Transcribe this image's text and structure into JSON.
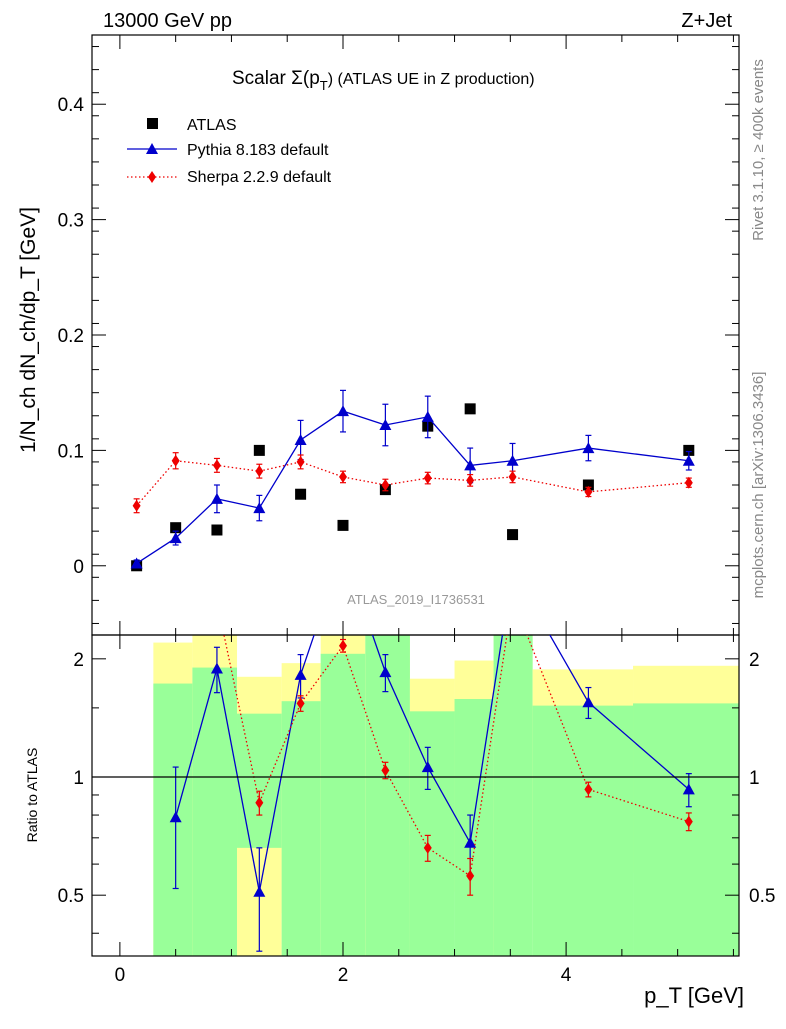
{
  "header": {
    "energy": "13000 GeV pp",
    "process": "Z+Jet"
  },
  "side_labels": {
    "rivet": "Rivet 3.1.10, ≥ 400k events",
    "mcplots": "mcplots.cern.ch [arXiv:1306.3436]"
  },
  "chart_data": {
    "type": "scatter",
    "title_prefix": "Scalar Σ(p",
    "title_sub": "T",
    "title_suffix": ") (ATLAS UE in Z production)",
    "analysis_id": "ATLAS_2019_I1736531",
    "ylabel": "1/N_ch dN_ch/dp_T [GeV]",
    "xlabel": "p_T [GeV]",
    "xlim": [
      -0.25,
      5.55
    ],
    "ylim": [
      -0.06,
      0.46
    ],
    "x_ticks": [
      0,
      2,
      4
    ],
    "y_ticks": [
      0,
      0.1,
      0.2,
      0.3,
      0.4
    ],
    "x_tick_labels": [
      "0",
      "2",
      "4"
    ],
    "y_tick_labels": [
      "0",
      "0.1",
      "0.2",
      "0.3",
      "0.4"
    ],
    "x": [
      0.15,
      0.5,
      0.87,
      1.25,
      1.62,
      2.0,
      2.38,
      2.76,
      3.14,
      3.52,
      4.2,
      5.1
    ],
    "bin_edges": [
      0.3,
      0.65,
      1.05,
      1.45,
      1.8,
      2.2,
      2.6,
      3.0,
      3.35,
      3.7,
      4.6,
      5.55
    ],
    "series": [
      {
        "name": "ATLAS",
        "color": "#000000",
        "marker": "square",
        "values": [
          0.0,
          0.033,
          0.031,
          0.1,
          0.062,
          0.035,
          0.066,
          0.121,
          0.136,
          0.027,
          0.07,
          0.1
        ]
      },
      {
        "name": "Pythia 8.183 default",
        "color": "#0000cc",
        "marker": "triangle",
        "line": "solid",
        "values": [
          0.002,
          0.024,
          0.058,
          0.05,
          0.109,
          0.134,
          0.122,
          0.129,
          0.087,
          0.091,
          0.102,
          0.091
        ],
        "errors": [
          0.003,
          0.006,
          0.012,
          0.011,
          0.017,
          0.018,
          0.018,
          0.018,
          0.015,
          0.015,
          0.011,
          0.008
        ]
      },
      {
        "name": "Sherpa 2.2.9 default",
        "color": "#ee0000",
        "marker": "diamond",
        "line": "dotted",
        "values": [
          0.052,
          0.091,
          0.087,
          0.082,
          0.09,
          0.077,
          0.07,
          0.076,
          0.074,
          0.077,
          0.064,
          0.072
        ],
        "errors": [
          0.006,
          0.007,
          0.006,
          0.006,
          0.006,
          0.005,
          0.005,
          0.005,
          0.005,
          0.005,
          0.004,
          0.004
        ]
      }
    ],
    "ratio": {
      "ylabel": "Ratio to ATLAS",
      "ylim": [
        0.35,
        2.3
      ],
      "y_ticks": [
        0.5,
        1,
        2
      ],
      "y_tick_labels": [
        "0.5",
        "1",
        "2"
      ],
      "reference_line": 1.0,
      "band_yellow": [
        [
          0.35,
          2.2
        ],
        [
          0.35,
          2.6
        ],
        [
          0.35,
          1.8
        ],
        [
          0.45,
          1.95
        ],
        [
          0.35,
          2.3
        ],
        [
          0.35,
          2.5
        ],
        [
          0.67,
          1.78
        ],
        [
          0.51,
          1.98
        ],
        [
          0.35,
          2.6
        ],
        [
          0.6,
          1.88
        ],
        [
          0.57,
          1.92
        ]
      ],
      "band_green": [
        [
          0.35,
          1.73
        ],
        [
          0.35,
          1.9
        ],
        [
          0.66,
          1.45
        ],
        [
          0.35,
          1.56
        ],
        [
          0.35,
          2.06
        ],
        [
          0.35,
          2.3
        ],
        [
          0.35,
          1.47
        ],
        [
          0.35,
          1.58
        ],
        [
          0.35,
          2.3
        ],
        [
          0.35,
          1.52
        ],
        [
          0.35,
          1.54
        ]
      ],
      "pythia": [
        0.79,
        1.89,
        0.51,
        1.82,
        3.8,
        1.85,
        1.06,
        0.68,
        3.37,
        1.55,
        0.93
      ],
      "pythia_errors": [
        0.27,
        0.25,
        0.15,
        0.23,
        0.5,
        0.2,
        0.13,
        0.12,
        0.6,
        0.14,
        0.09
      ],
      "sherpa": [
        2.75,
        2.8,
        0.86,
        1.54,
        2.16,
        1.04,
        0.66,
        0.56,
        2.85,
        0.93,
        0.77
      ],
      "sherpa_errors": [
        0.25,
        0.2,
        0.06,
        0.07,
        0.08,
        0.05,
        0.05,
        0.06,
        0.2,
        0.04,
        0.04
      ]
    }
  }
}
